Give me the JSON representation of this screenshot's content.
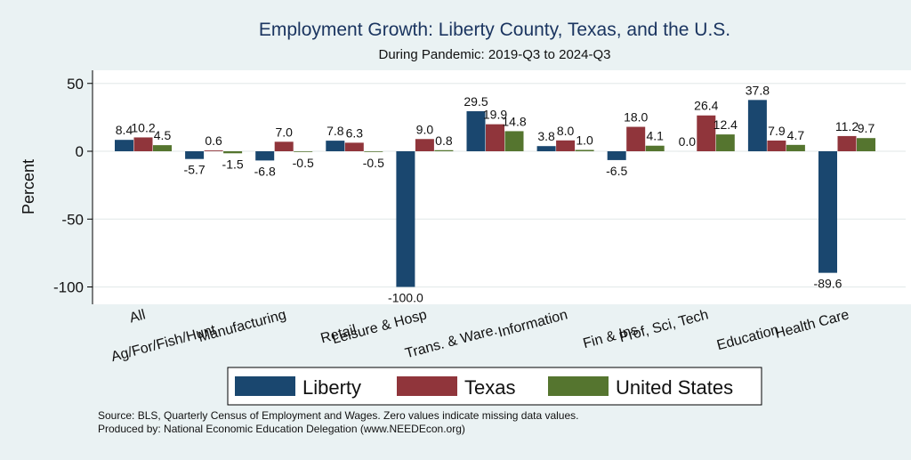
{
  "chart_data": {
    "type": "bar",
    "title": "Employment Growth: Liberty County, Texas, and the U.S.",
    "subtitle": "During Pandemic: 2019-Q3 to 2024-Q3",
    "xlabel": "",
    "ylabel": "Percent",
    "ylim": [
      -110,
      55
    ],
    "yticks": [
      50,
      0,
      -50,
      -100
    ],
    "ytick_labels": [
      "50",
      "0",
      "-50",
      "-100"
    ],
    "grid": true,
    "legend_position": "bottom",
    "categories": [
      "All",
      "Ag/For/Fish/Hunt",
      "Manufacturing",
      "Retail",
      "Leisure & Hosp",
      "Trans. & Ware.",
      "Information",
      "Fin & Ins",
      "Prof, Sci, Tech",
      "Education",
      "Health Care"
    ],
    "series": [
      {
        "name": "Liberty",
        "color": "#1a476f",
        "values": [
          8.4,
          -5.7,
          -6.8,
          7.8,
          -100.0,
          29.5,
          3.8,
          -6.5,
          0.0,
          37.8,
          -89.6
        ],
        "labels": [
          "8.4",
          "-5.7",
          "-6.8",
          "7.8",
          "-100.0",
          "29.5",
          "3.8",
          "-6.5",
          "0.0",
          "37.8",
          "-89.6"
        ]
      },
      {
        "name": "Texas",
        "color": "#90353b",
        "values": [
          10.2,
          0.6,
          7.0,
          6.3,
          9.0,
          19.9,
          8.0,
          18.0,
          26.4,
          7.9,
          11.2
        ],
        "labels": [
          "10.2",
          "0.6",
          "7.0",
          "6.3",
          "9.0",
          "19.9",
          "8.0",
          "18.0",
          "26.4",
          "7.9",
          "11.2"
        ]
      },
      {
        "name": "United States",
        "color": "#55752f",
        "values": [
          4.5,
          -1.5,
          -0.5,
          -0.5,
          0.8,
          14.8,
          1.0,
          4.1,
          12.4,
          4.7,
          9.7
        ],
        "labels": [
          "4.5",
          "-1.5",
          "-0.5",
          "-0.5",
          "0.8",
          "14.8",
          "1.0",
          "4.1",
          "12.4",
          "4.7",
          "9.7"
        ]
      }
    ]
  },
  "footnotes": {
    "source": "Source: BLS, Quarterly Census of Employment and Wages. Zero values indicate missing data values.",
    "producer": "Produced by: National Economic Education Delegation (www.NEEDEcon.org)"
  }
}
